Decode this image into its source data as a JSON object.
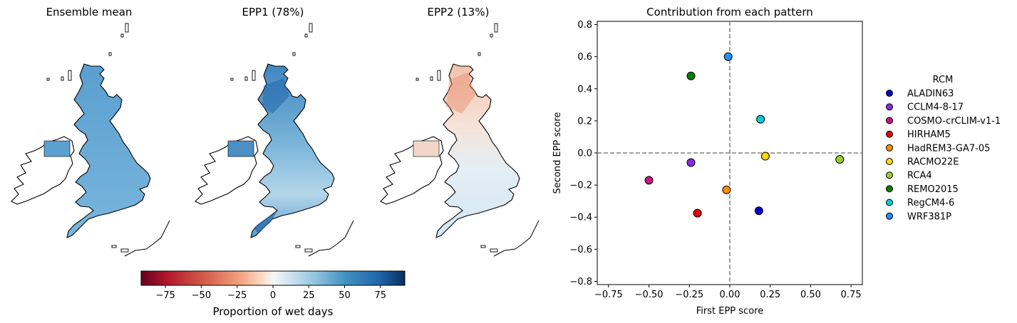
{
  "maps": [
    {
      "title": "Ensemble mean",
      "style": "mean"
    },
    {
      "title": "EPP1 (78%)",
      "style": "epp1"
    },
    {
      "title": "EPP2 (13%)",
      "style": "epp2"
    }
  ],
  "colorbar": {
    "label": "Proportion of wet days",
    "colormap": "RdBu",
    "range": [
      -92,
      92
    ],
    "ticks": [
      -75,
      -50,
      -25,
      0,
      25,
      50,
      75
    ],
    "tick_labels": [
      "−75",
      "−50",
      "−25",
      "0",
      "25",
      "50",
      "75"
    ]
  },
  "chart_data": [
    {
      "type": "scatter",
      "title": "Contribution from each pattern",
      "xlabel": "First EPP score",
      "ylabel": "Second EPP score",
      "xlim": [
        -0.82,
        0.82
      ],
      "ylim": [
        -0.82,
        0.82
      ],
      "xticks": [
        -0.75,
        -0.5,
        -0.25,
        0.0,
        0.25,
        0.5,
        0.75
      ],
      "xtick_labels": [
        "−0.75",
        "−0.50",
        "−0.25",
        "0.00",
        "0.25",
        "0.50",
        "0.75"
      ],
      "yticks": [
        -0.8,
        -0.6,
        -0.4,
        -0.2,
        0.0,
        0.2,
        0.4,
        0.6,
        0.8
      ],
      "ytick_labels": [
        "−0.8",
        "−0.6",
        "−0.4",
        "−0.2",
        "0.0",
        "0.2",
        "0.4",
        "0.6",
        "0.8"
      ],
      "reference_lines": {
        "x": 0,
        "y": 0,
        "style": "dashed",
        "color": "#808080"
      },
      "grid": false,
      "legend": {
        "title": "RCM",
        "placement": "outside-right"
      },
      "series": [
        {
          "name": "ALADIN63",
          "color": "#0000cd",
          "x": 0.18,
          "y": -0.36
        },
        {
          "name": "CCLM4-8-17",
          "color": "#8a2be2",
          "x": -0.24,
          "y": -0.06
        },
        {
          "name": "COSMO-crCLIM-v1-1",
          "color": "#c71585",
          "x": -0.5,
          "y": -0.17
        },
        {
          "name": "HIRHAM5",
          "color": "#ee0000",
          "x": -0.2,
          "y": -0.375
        },
        {
          "name": "HadREM3-GA7-05",
          "color": "#ff8c00",
          "x": -0.02,
          "y": -0.23
        },
        {
          "name": "RACMO22E",
          "color": "#ffd700",
          "x": 0.22,
          "y": -0.02
        },
        {
          "name": "RCA4",
          "color": "#9acd32",
          "x": 0.68,
          "y": -0.04
        },
        {
          "name": "REMO2015",
          "color": "#008000",
          "x": -0.24,
          "y": 0.48
        },
        {
          "name": "RegCM4-6",
          "color": "#00ced1",
          "x": 0.19,
          "y": 0.21
        },
        {
          "name": "WRF381P",
          "color": "#1e90ff",
          "x": -0.01,
          "y": 0.6
        }
      ]
    }
  ]
}
